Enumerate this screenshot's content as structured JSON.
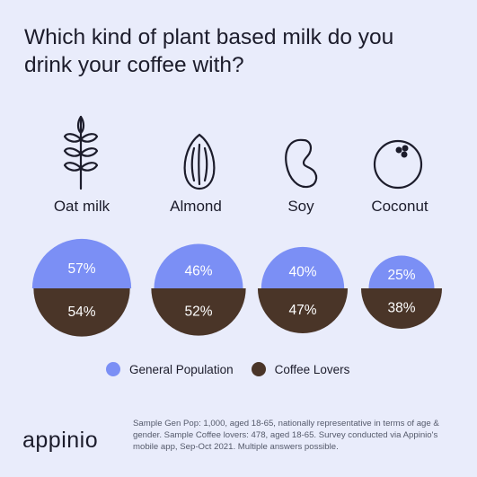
{
  "title": "Which kind of plant based milk do you drink your coffee with?",
  "colors": {
    "general": "#7b8ff5",
    "coffee": "#4a3528",
    "background": "#e9ecfb"
  },
  "categories": [
    {
      "label": "Oat milk",
      "icon": "wheat-icon"
    },
    {
      "label": "Almond",
      "icon": "almond-icon"
    },
    {
      "label": "Soy",
      "icon": "soy-bean-icon"
    },
    {
      "label": "Coconut",
      "icon": "coconut-icon"
    }
  ],
  "chart_data": {
    "type": "half-circle comparison",
    "categories": [
      "Oat milk",
      "Almond",
      "Soy",
      "Coconut"
    ],
    "series": [
      {
        "name": "General Population",
        "values": [
          57,
          46,
          40,
          25
        ],
        "labels": [
          "57%",
          "46%",
          "40%",
          "25%"
        ]
      },
      {
        "name": "Coffee Lovers",
        "values": [
          54,
          52,
          47,
          38
        ],
        "labels": [
          "54%",
          "52%",
          "47%",
          "38%"
        ]
      }
    ],
    "legend_position": "bottom"
  },
  "legend": {
    "general": "General Population",
    "coffee": "Coffee Lovers"
  },
  "logo": "appinio",
  "footnote": "Sample Gen Pop: 1,000, aged 18-65, nationally representative in terms of age & gender. Sample Coffee lovers: 478, aged 18-65. Survey conducted via Appinio's mobile app, Sep-Oct 2021. Multiple answers possible."
}
